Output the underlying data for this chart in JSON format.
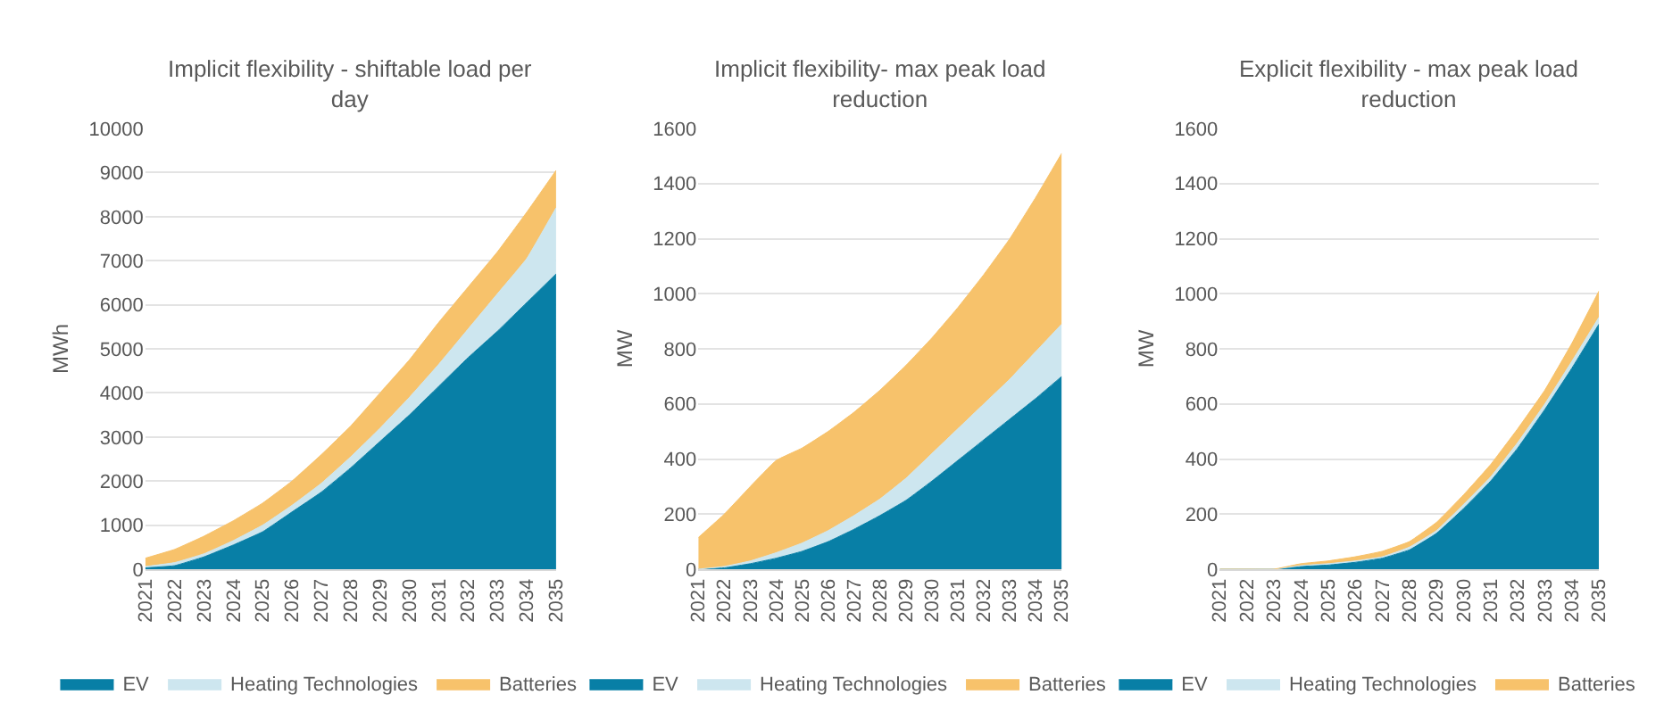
{
  "chart_data": [
    {
      "type": "area",
      "stacked": true,
      "title": "Implicit flexibility - shiftable load per day",
      "ylabel": "MWh",
      "categories": [
        "2021",
        "2022",
        "2023",
        "2024",
        "2025",
        "2026",
        "2027",
        "2028",
        "2029",
        "2030",
        "2031",
        "2032",
        "2033",
        "2034",
        "2035"
      ],
      "ylim": [
        0,
        10000
      ],
      "yticks": [
        0,
        1000,
        2000,
        3000,
        4000,
        5000,
        6000,
        7000,
        8000,
        9000,
        10000
      ],
      "grid": "y",
      "legend": "bottom",
      "series": [
        {
          "name": "EV",
          "color": "#087fa6",
          "values": [
            30,
            80,
            280,
            550,
            850,
            1300,
            1750,
            2300,
            2900,
            3500,
            4150,
            4800,
            5400,
            6050,
            6700
          ]
        },
        {
          "name": "Heating Technologies",
          "color": "#cde6ef",
          "values": [
            30,
            70,
            70,
            100,
            150,
            150,
            200,
            250,
            300,
            400,
            500,
            650,
            850,
            1000,
            1500
          ]
        },
        {
          "name": "Batteries",
          "color": "#f7c26b",
          "values": [
            190,
            300,
            400,
            450,
            500,
            550,
            650,
            700,
            800,
            850,
            950,
            950,
            950,
            1050,
            850
          ]
        }
      ]
    },
    {
      "type": "area",
      "stacked": true,
      "title": "Implicit flexibility- max peak load reduction",
      "ylabel": "MW",
      "categories": [
        "2021",
        "2022",
        "2023",
        "2024",
        "2025",
        "2026",
        "2027",
        "2028",
        "2029",
        "2030",
        "2031",
        "2032",
        "2033",
        "2034",
        "2035"
      ],
      "ylim": [
        0,
        1600
      ],
      "yticks": [
        0,
        200,
        400,
        600,
        800,
        1000,
        1200,
        1400,
        1600
      ],
      "grid": "y",
      "legend": "bottom",
      "series": [
        {
          "name": "EV",
          "color": "#087fa6",
          "values": [
            0,
            5,
            20,
            40,
            65,
            100,
            145,
            195,
            250,
            320,
            395,
            470,
            545,
            620,
            700
          ]
        },
        {
          "name": "Heating Technologies",
          "color": "#cde6ef",
          "values": [
            0,
            5,
            10,
            20,
            30,
            40,
            50,
            60,
            80,
            100,
            115,
            130,
            145,
            170,
            190
          ]
        },
        {
          "name": "Batteries",
          "color": "#f7c26b",
          "values": [
            115,
            190,
            270,
            335,
            345,
            360,
            375,
            395,
            410,
            420,
            440,
            470,
            510,
            560,
            620
          ]
        }
      ]
    },
    {
      "type": "area",
      "stacked": true,
      "title": "Explicit flexibility - max peak load reduction",
      "ylabel": "MW",
      "categories": [
        "2021",
        "2022",
        "2023",
        "2024",
        "2025",
        "2026",
        "2027",
        "2028",
        "2029",
        "2030",
        "2031",
        "2032",
        "2033",
        "2034",
        "2035"
      ],
      "ylim": [
        0,
        1600
      ],
      "yticks": [
        0,
        200,
        400,
        600,
        800,
        1000,
        1200,
        1400,
        1600
      ],
      "grid": "y",
      "legend": "bottom",
      "series": [
        {
          "name": "EV",
          "color": "#087fa6",
          "values": [
            0,
            0,
            0,
            10,
            15,
            25,
            40,
            70,
            130,
            220,
            320,
            440,
            580,
            730,
            890
          ]
        },
        {
          "name": "Heating Technologies",
          "color": "#cde6ef",
          "values": [
            0,
            0,
            0,
            3,
            5,
            5,
            5,
            10,
            10,
            15,
            15,
            20,
            20,
            25,
            25
          ]
        },
        {
          "name": "Batteries",
          "color": "#f7c26b",
          "values": [
            0,
            0,
            0,
            7,
            10,
            15,
            20,
            20,
            30,
            35,
            45,
            50,
            50,
            65,
            95
          ]
        }
      ]
    }
  ]
}
